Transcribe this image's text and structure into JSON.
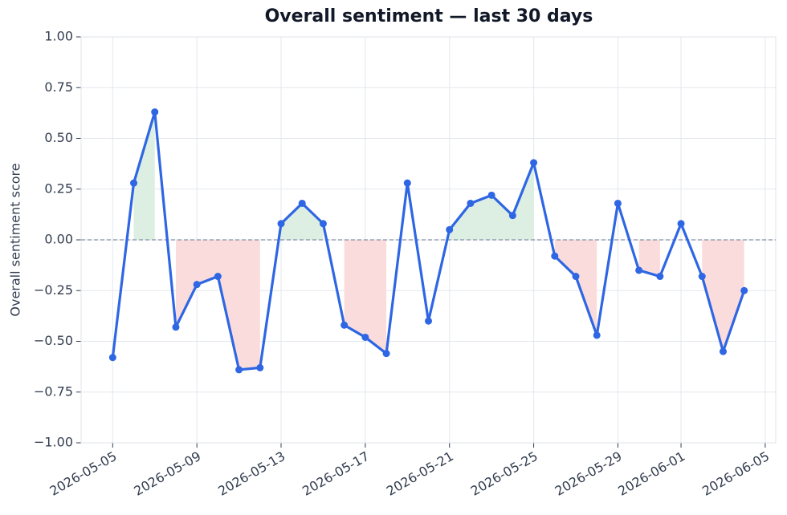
{
  "chart_data": {
    "type": "line",
    "title": "Overall sentiment — last 30 days",
    "y_label": "Overall sentiment score",
    "x": [
      "2026-05-05",
      "2026-05-06",
      "2026-05-07",
      "2026-05-08",
      "2026-05-09",
      "2026-05-10",
      "2026-05-11",
      "2026-05-12",
      "2026-05-13",
      "2026-05-14",
      "2026-05-15",
      "2026-05-16",
      "2026-05-17",
      "2026-05-18",
      "2026-05-19",
      "2026-05-20",
      "2026-05-21",
      "2026-05-22",
      "2026-05-23",
      "2026-05-24",
      "2026-05-25",
      "2026-05-26",
      "2026-05-27",
      "2026-05-28",
      "2026-05-29",
      "2026-05-30",
      "2026-05-31",
      "2026-06-01",
      "2026-06-02",
      "2026-06-03",
      "2026-06-04"
    ],
    "series": [
      {
        "color": "#2e66e3",
        "values": [
          -0.58,
          0.28,
          0.63,
          -0.43,
          -0.22,
          -0.18,
          -0.64,
          -0.63,
          0.08,
          0.18,
          0.08,
          -0.42,
          -0.48,
          -0.56,
          0.28,
          -0.4,
          0.05,
          0.18,
          0.22,
          0.12,
          0.38,
          -0.08,
          -0.18,
          -0.47,
          0.18,
          -0.15,
          -0.18,
          0.08,
          -0.18,
          -0.55,
          -0.25
        ]
      }
    ],
    "positive_fill": "#dcefe2",
    "negative_fill": "#fbdcdc",
    "xlim": [
      "2026-05-03T12:00Z",
      "2026-06-05T12:00Z"
    ],
    "xticks": [
      "2026-05-05",
      "2026-05-09",
      "2026-05-13",
      "2026-05-17",
      "2026-05-21",
      "2026-05-25",
      "2026-05-29",
      "2026-06-01",
      "2026-06-05"
    ],
    "ylim": [
      -1,
      1
    ],
    "yticks": [
      {
        "value": -1,
        "label": "−1.00"
      },
      {
        "value": -0.75,
        "label": "−0.75"
      },
      {
        "value": -0.5,
        "label": "−0.50"
      },
      {
        "value": -0.25,
        "label": "−0.25"
      },
      {
        "value": 0,
        "label": "0.00"
      },
      {
        "value": 0.25,
        "label": "0.25"
      },
      {
        "value": 0.5,
        "label": "0.50"
      },
      {
        "value": 0.75,
        "label": "0.75"
      },
      {
        "value": 1,
        "label": "1.00"
      }
    ],
    "grid": true
  }
}
